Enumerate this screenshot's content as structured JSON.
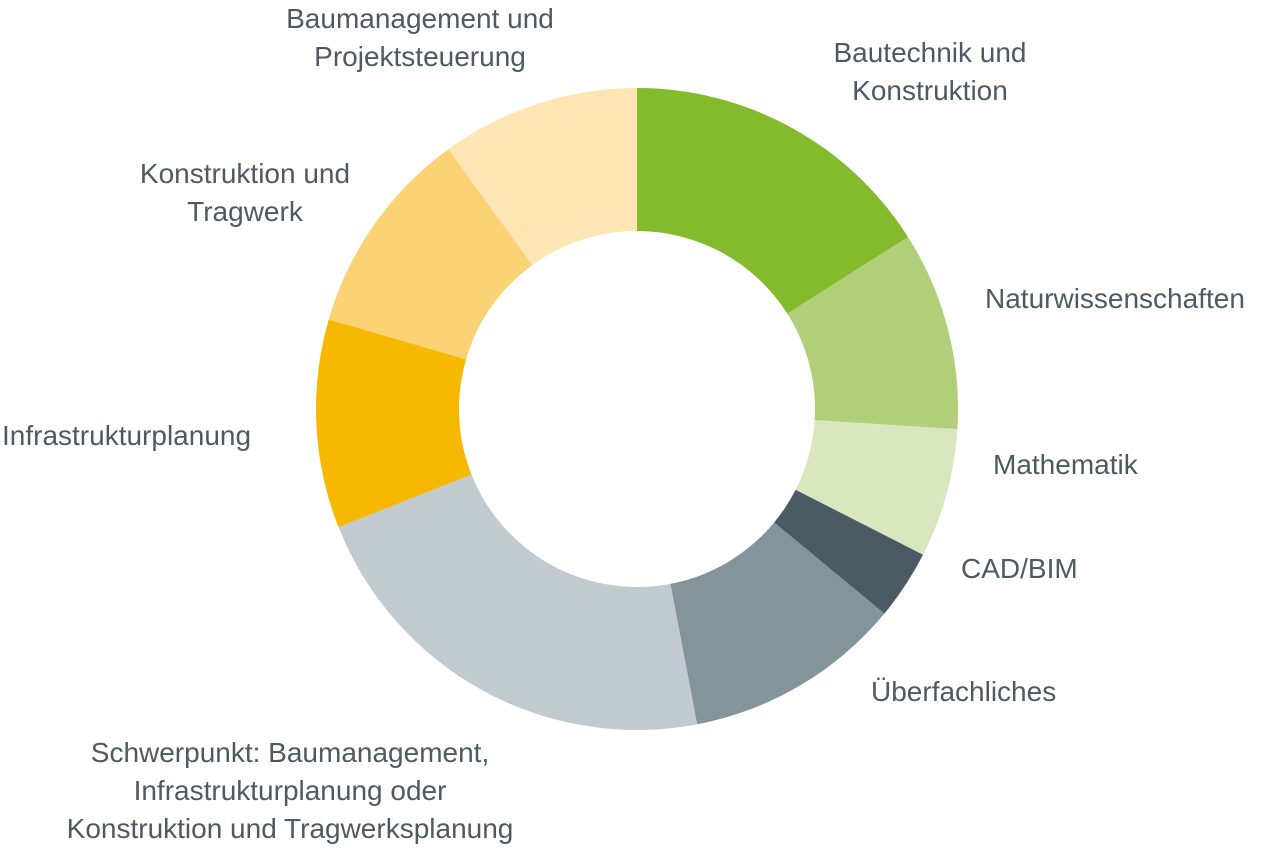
{
  "chart_data": {
    "type": "pie",
    "variant": "donut",
    "title": "",
    "unit": "%",
    "slices": [
      {
        "label_lines": [
          "Bautechnik und",
          "Konstruktion"
        ],
        "value": 16,
        "color": "#84bb2d"
      },
      {
        "label_lines": [
          "Naturwissenschaften"
        ],
        "value": 10,
        "color": "#b0cf78"
      },
      {
        "label_lines": [
          "Mathematik"
        ],
        "value": 6.5,
        "color": "#d9e7bf"
      },
      {
        "label_lines": [
          "CAD/BIM"
        ],
        "value": 3.5,
        "color": "#4b5b66"
      },
      {
        "label_lines": [
          "Überfachliches"
        ],
        "value": 11,
        "color": "#84949b"
      },
      {
        "label_lines": [
          "Schwerpunkt: Baumanagement,",
          "Infrastrukturplanung oder",
          "Konstruktion und Tragwerksplanung"
        ],
        "value": 22,
        "color": "#c1cacf"
      },
      {
        "label_lines": [
          "Infrastrukturplanung"
        ],
        "value": 10.5,
        "color": "#f6b800"
      },
      {
        "label_lines": [
          "Konstruktion und",
          "Tragwerk"
        ],
        "value": 10.5,
        "color": "#fbd274"
      },
      {
        "label_lines": [
          "Baumanagement und",
          "Projektsteuerung"
        ],
        "value": 10,
        "color": "#fde5b4"
      }
    ],
    "start_angle": "12 o'clock",
    "direction": "clockwise",
    "legend": "none (labels placed around the ring)"
  }
}
